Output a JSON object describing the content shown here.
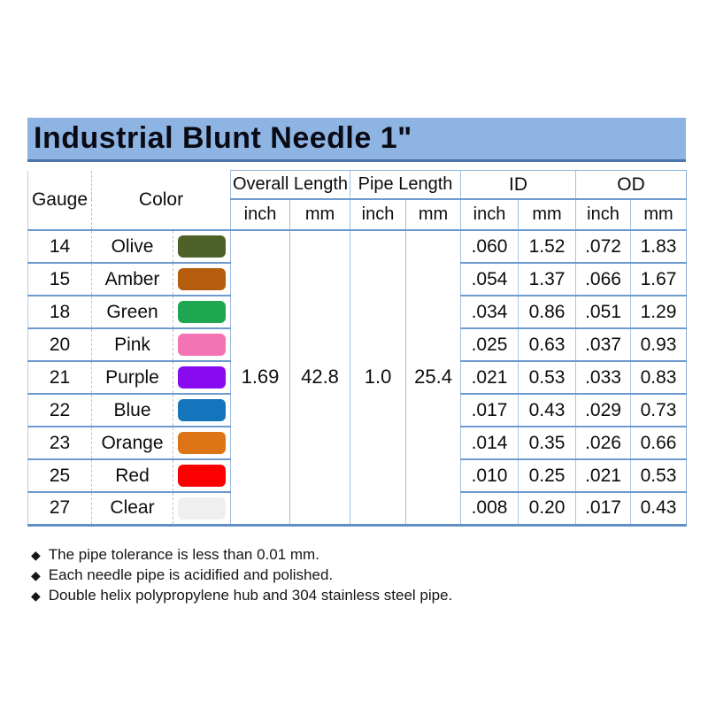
{
  "title": "Industrial Blunt Needle 1\"",
  "table": {
    "col_headers": {
      "gauge": "Gauge",
      "color": "Color",
      "overall_length": "Overall Length",
      "pipe_length": "Pipe Length",
      "id": "ID",
      "od": "OD"
    },
    "unit_row": [
      "inch",
      "mm",
      "inch",
      "mm",
      "inch",
      "mm",
      "inch",
      "mm"
    ],
    "merged_values": {
      "overall_length_inch": "1.69",
      "overall_length_mm": "42.8",
      "pipe_length_inch": "1.0",
      "pipe_length_mm": "25.4"
    },
    "rows": [
      {
        "gauge": "14",
        "color": "Olive",
        "swatch": "#4d6128",
        "id_inch": ".060",
        "id_mm": "1.52",
        "od_inch": ".072",
        "od_mm": "1.83"
      },
      {
        "gauge": "15",
        "color": "Amber",
        "swatch": "#b55c0d",
        "id_inch": ".054",
        "id_mm": "1.37",
        "od_inch": ".066",
        "od_mm": "1.67"
      },
      {
        "gauge": "18",
        "color": "Green",
        "swatch": "#1ea651",
        "id_inch": ".034",
        "id_mm": "0.86",
        "od_inch": ".051",
        "od_mm": "1.29"
      },
      {
        "gauge": "20",
        "color": "Pink",
        "swatch": "#f473b4",
        "id_inch": ".025",
        "id_mm": "0.63",
        "od_inch": ".037",
        "od_mm": "0.93"
      },
      {
        "gauge": "21",
        "color": "Purple",
        "swatch": "#8a0af0",
        "id_inch": ".021",
        "id_mm": "0.53",
        "od_inch": ".033",
        "od_mm": "0.83"
      },
      {
        "gauge": "22",
        "color": "Blue",
        "swatch": "#1474bc",
        "id_inch": ".017",
        "id_mm": "0.43",
        "od_inch": ".029",
        "od_mm": "0.73"
      },
      {
        "gauge": "23",
        "color": "Orange",
        "swatch": "#dd7517",
        "id_inch": ".014",
        "id_mm": "0.35",
        "od_inch": ".026",
        "od_mm": "0.66"
      },
      {
        "gauge": "25",
        "color": "Red",
        "swatch": "#fa0000",
        "id_inch": ".010",
        "id_mm": "0.25",
        "od_inch": ".021",
        "od_mm": "0.53"
      },
      {
        "gauge": "27",
        "color": "Clear",
        "swatch": "#efefef",
        "id_inch": ".008",
        "id_mm": "0.20",
        "od_inch": ".017",
        "od_mm": "0.43"
      }
    ]
  },
  "notes": [
    "The pipe tolerance is less than 0.01 mm.",
    "Each needle pipe is acidified and polished.",
    "Double helix polypropylene hub and 304 stainless steel pipe."
  ],
  "bullet_icon": "◆",
  "colors": {
    "title_bar": "#8db4e2",
    "title_bar_edge": "#4a76aa",
    "grid_light": "#aac6e6",
    "grid_strong": "#6e9ace",
    "table_bottom_edge": "#6390c4"
  }
}
